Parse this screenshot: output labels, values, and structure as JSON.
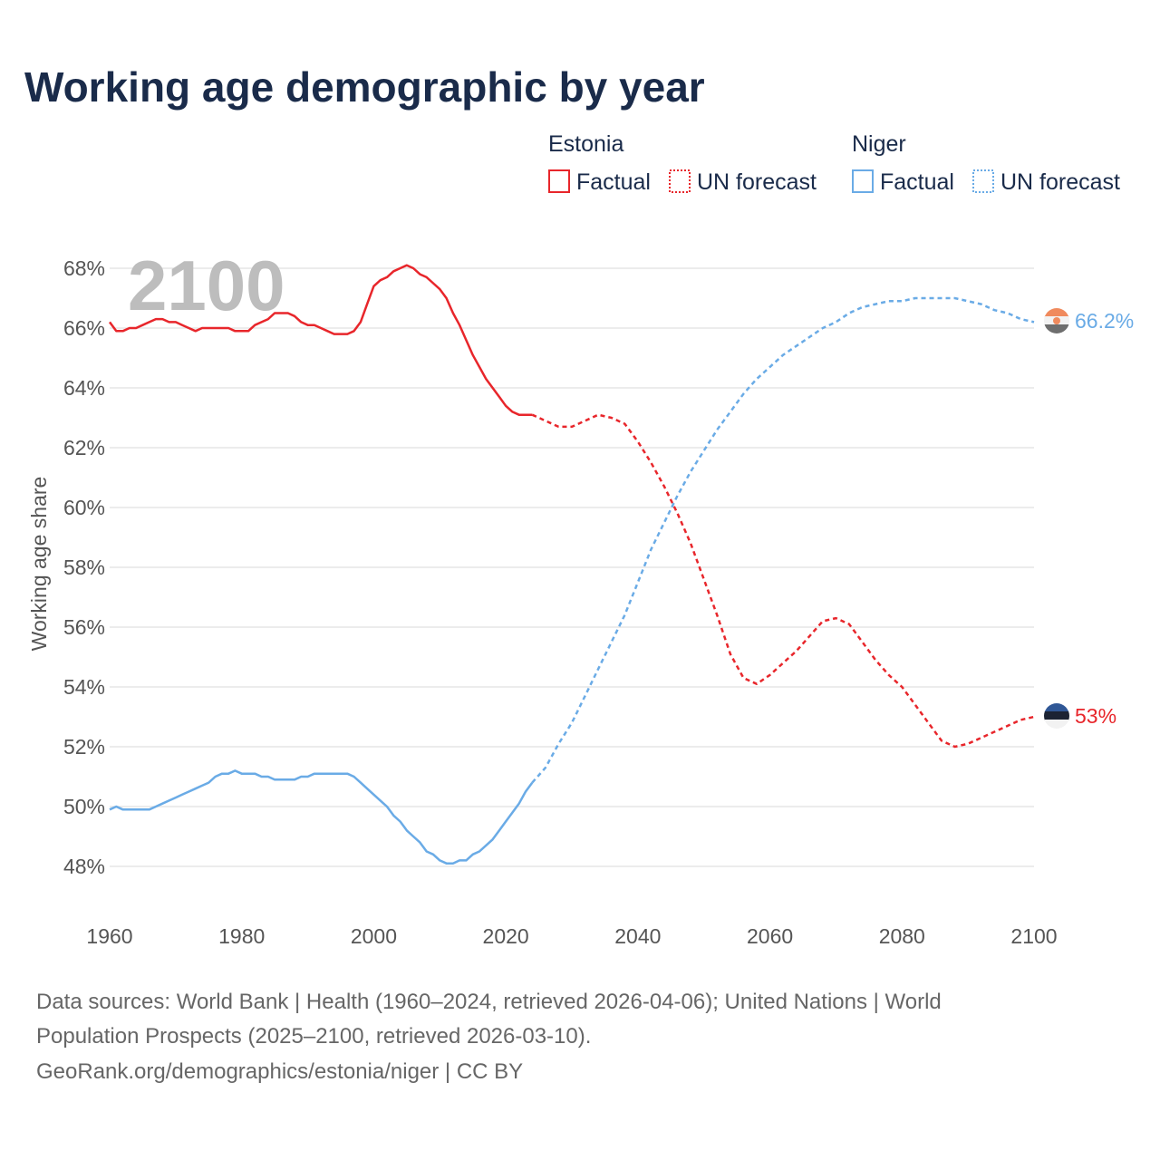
{
  "title": "Working age demographic by year",
  "legend": {
    "groups": [
      {
        "country": "Estonia",
        "color": "#e8262b",
        "factual_label": "Factual",
        "forecast_label": "UN forecast"
      },
      {
        "country": "Niger",
        "color": "#6aabe6",
        "factual_label": "Factual",
        "forecast_label": "UN forecast"
      }
    ]
  },
  "year_watermark": "2100",
  "source": {
    "line1": "Data sources: World Bank | Health (1960–2024, retrieved 2026-04-06); United Nations | World",
    "line2": "Population Prospects (2025–2100, retrieved 2026-03-10).",
    "line3": "GeoRank.org/demographics/estonia/niger | CC BY"
  },
  "end_labels": {
    "estonia": "53%",
    "niger": "66.2%"
  },
  "chart_data": {
    "type": "line",
    "title": "Working age demographic by year",
    "xlabel": "",
    "ylabel": "Working age share",
    "xlim": [
      1960,
      2100
    ],
    "ylim": [
      47,
      69
    ],
    "x_ticks": [
      1960,
      1980,
      2000,
      2020,
      2040,
      2060,
      2080,
      2100
    ],
    "x_tick_labels": [
      "1960",
      "1980",
      "2000",
      "2020",
      "2040",
      "2060",
      "2080",
      "2100"
    ],
    "y_ticks": [
      48,
      50,
      52,
      54,
      56,
      58,
      60,
      62,
      64,
      66,
      68
    ],
    "y_tick_labels": [
      "48%",
      "50%",
      "52%",
      "54%",
      "56%",
      "58%",
      "60%",
      "62%",
      "64%",
      "66%",
      "68%"
    ],
    "series": [
      {
        "name": "Estonia",
        "color": "#e8262b",
        "factual": {
          "x": [
            1960,
            1961,
            1962,
            1963,
            1964,
            1965,
            1966,
            1967,
            1968,
            1969,
            1970,
            1971,
            1972,
            1973,
            1974,
            1975,
            1976,
            1977,
            1978,
            1979,
            1980,
            1981,
            1982,
            1983,
            1984,
            1985,
            1986,
            1987,
            1988,
            1989,
            1990,
            1991,
            1992,
            1993,
            1994,
            1995,
            1996,
            1997,
            1998,
            1999,
            2000,
            2001,
            2002,
            2003,
            2004,
            2005,
            2006,
            2007,
            2008,
            2009,
            2010,
            2011,
            2012,
            2013,
            2014,
            2015,
            2016,
            2017,
            2018,
            2019,
            2020,
            2021,
            2022,
            2023,
            2024
          ],
          "y": [
            66.2,
            65.9,
            65.9,
            66.0,
            66.0,
            66.1,
            66.2,
            66.3,
            66.3,
            66.2,
            66.2,
            66.1,
            66.0,
            65.9,
            66.0,
            66.0,
            66.0,
            66.0,
            66.0,
            65.9,
            65.9,
            65.9,
            66.1,
            66.2,
            66.3,
            66.5,
            66.5,
            66.5,
            66.4,
            66.2,
            66.1,
            66.1,
            66.0,
            65.9,
            65.8,
            65.8,
            65.8,
            65.9,
            66.2,
            66.8,
            67.4,
            67.6,
            67.7,
            67.9,
            68.0,
            68.1,
            68.0,
            67.8,
            67.7,
            67.5,
            67.3,
            67.0,
            66.5,
            66.1,
            65.6,
            65.1,
            64.7,
            64.3,
            64.0,
            63.7,
            63.4,
            63.2,
            63.1,
            63.1,
            63.1
          ]
        },
        "forecast": {
          "x": [
            2024,
            2026,
            2028,
            2030,
            2032,
            2034,
            2036,
            2038,
            2040,
            2042,
            2044,
            2046,
            2048,
            2050,
            2052,
            2054,
            2056,
            2058,
            2060,
            2062,
            2064,
            2066,
            2068,
            2070,
            2072,
            2074,
            2076,
            2078,
            2080,
            2082,
            2084,
            2086,
            2088,
            2090,
            2092,
            2094,
            2096,
            2098,
            2100
          ],
          "y": [
            63.1,
            62.9,
            62.7,
            62.7,
            62.9,
            63.1,
            63.0,
            62.8,
            62.2,
            61.5,
            60.7,
            59.8,
            58.8,
            57.6,
            56.4,
            55.1,
            54.3,
            54.1,
            54.4,
            54.8,
            55.2,
            55.7,
            56.2,
            56.3,
            56.1,
            55.5,
            54.9,
            54.4,
            54.0,
            53.4,
            52.8,
            52.2,
            52.0,
            52.1,
            52.3,
            52.5,
            52.7,
            52.9,
            53.0
          ]
        }
      },
      {
        "name": "Niger",
        "color": "#6aabe6",
        "factual": {
          "x": [
            1960,
            1961,
            1962,
            1963,
            1964,
            1965,
            1966,
            1967,
            1968,
            1969,
            1970,
            1971,
            1972,
            1973,
            1974,
            1975,
            1976,
            1977,
            1978,
            1979,
            1980,
            1981,
            1982,
            1983,
            1984,
            1985,
            1986,
            1987,
            1988,
            1989,
            1990,
            1991,
            1992,
            1993,
            1994,
            1995,
            1996,
            1997,
            1998,
            1999,
            2000,
            2001,
            2002,
            2003,
            2004,
            2005,
            2006,
            2007,
            2008,
            2009,
            2010,
            2011,
            2012,
            2013,
            2014,
            2015,
            2016,
            2017,
            2018,
            2019,
            2020,
            2021,
            2022,
            2023,
            2024
          ],
          "y": [
            49.9,
            50.0,
            49.9,
            49.9,
            49.9,
            49.9,
            49.9,
            50.0,
            50.1,
            50.2,
            50.3,
            50.4,
            50.5,
            50.6,
            50.7,
            50.8,
            51.0,
            51.1,
            51.1,
            51.2,
            51.1,
            51.1,
            51.1,
            51.0,
            51.0,
            50.9,
            50.9,
            50.9,
            50.9,
            51.0,
            51.0,
            51.1,
            51.1,
            51.1,
            51.1,
            51.1,
            51.1,
            51.0,
            50.8,
            50.6,
            50.4,
            50.2,
            50.0,
            49.7,
            49.5,
            49.2,
            49.0,
            48.8,
            48.5,
            48.4,
            48.2,
            48.1,
            48.1,
            48.2,
            48.2,
            48.4,
            48.5,
            48.7,
            48.9,
            49.2,
            49.5,
            49.8,
            50.1,
            50.5,
            50.8
          ]
        },
        "forecast": {
          "x": [
            2024,
            2026,
            2028,
            2030,
            2032,
            2034,
            2036,
            2038,
            2040,
            2042,
            2044,
            2046,
            2048,
            2050,
            2052,
            2054,
            2056,
            2058,
            2060,
            2062,
            2064,
            2066,
            2068,
            2070,
            2072,
            2074,
            2076,
            2078,
            2080,
            2082,
            2084,
            2086,
            2088,
            2090,
            2092,
            2094,
            2096,
            2098,
            2100
          ],
          "y": [
            50.8,
            51.3,
            52.1,
            52.8,
            53.7,
            54.6,
            55.5,
            56.4,
            57.5,
            58.6,
            59.5,
            60.4,
            61.2,
            61.9,
            62.6,
            63.2,
            63.8,
            64.3,
            64.7,
            65.1,
            65.4,
            65.7,
            66.0,
            66.2,
            66.5,
            66.7,
            66.8,
            66.9,
            66.9,
            67.0,
            67.0,
            67.0,
            67.0,
            66.9,
            66.8,
            66.6,
            66.5,
            66.3,
            66.2
          ]
        }
      }
    ]
  }
}
